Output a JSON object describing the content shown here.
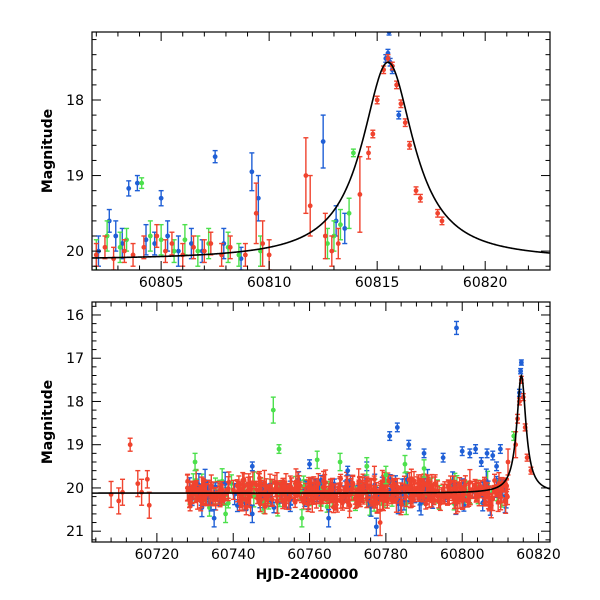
{
  "colors": {
    "blue": "#1f5fd6",
    "green": "#4ce04c",
    "red": "#f0432e",
    "model": "#000000"
  },
  "chart_data": [
    {
      "type": "scatter",
      "xlabel": "",
      "ylabel": "Magnitude",
      "xlim": [
        60801.8,
        60823.0
      ],
      "ylim": [
        20.25,
        17.1
      ],
      "y_inverted": true,
      "x_ticks": [
        60805,
        60810,
        60815,
        60820
      ],
      "y_ticks": [
        18,
        19,
        20
      ],
      "model_curve": {
        "t0": 60815.5,
        "m_base": 20.12,
        "m_peak": 17.5,
        "tE": 1.45
      },
      "series": [
        {
          "color": "blue",
          "points": [
            [
              60802.1,
              20.0,
              0.2
            ],
            [
              60802.6,
              19.6,
              0.15
            ],
            [
              60802.9,
              19.8,
              0.2
            ],
            [
              60803.2,
              19.9,
              0.2
            ],
            [
              60803.5,
              19.17,
              0.1
            ],
            [
              60803.9,
              19.1,
              0.1
            ],
            [
              60804.3,
              19.85,
              0.2
            ],
            [
              60804.7,
              19.9,
              0.15
            ],
            [
              60805.0,
              19.3,
              0.1
            ],
            [
              60805.3,
              19.8,
              0.2
            ],
            [
              60805.8,
              20.0,
              0.2
            ],
            [
              60806.4,
              19.9,
              0.2
            ],
            [
              60806.9,
              20.0,
              0.15
            ],
            [
              60807.5,
              18.75,
              0.08
            ],
            [
              60807.9,
              19.9,
              0.2
            ],
            [
              60808.7,
              20.1,
              0.15
            ],
            [
              60809.2,
              18.95,
              0.25
            ],
            [
              60809.5,
              19.3,
              0.3
            ],
            [
              60812.5,
              18.55,
              0.35
            ],
            [
              60813.1,
              19.6,
              0.2
            ],
            [
              60813.5,
              19.7,
              0.2
            ],
            [
              60815.4,
              17.45,
              0.05
            ],
            [
              60815.5,
              17.38,
              0.05
            ],
            [
              60815.55,
              17.1,
              0.04
            ],
            [
              60815.6,
              17.5,
              0.05
            ],
            [
              60815.7,
              17.6,
              0.05
            ],
            [
              60816.0,
              18.2,
              0.05
            ]
          ]
        },
        {
          "color": "green",
          "points": [
            [
              60802.0,
              20.05,
              0.2
            ],
            [
              60802.5,
              19.8,
              0.2
            ],
            [
              60803.1,
              19.95,
              0.2
            ],
            [
              60803.4,
              19.85,
              0.15
            ],
            [
              60804.1,
              19.1,
              0.07
            ],
            [
              60804.5,
              19.8,
              0.2
            ],
            [
              60805.0,
              19.85,
              0.2
            ],
            [
              60805.6,
              20.0,
              0.15
            ],
            [
              60806.1,
              19.85,
              0.2
            ],
            [
              60806.7,
              20.0,
              0.2
            ],
            [
              60807.2,
              19.9,
              0.2
            ],
            [
              60808.1,
              19.95,
              0.2
            ],
            [
              60808.6,
              20.05,
              0.15
            ],
            [
              60809.6,
              20.0,
              0.2
            ],
            [
              60812.7,
              19.9,
              0.2
            ],
            [
              60813.0,
              19.8,
              0.2
            ],
            [
              60813.3,
              19.65,
              0.2
            ],
            [
              60813.7,
              19.5,
              0.2
            ],
            [
              60813.9,
              18.7,
              0.05
            ]
          ]
        },
        {
          "color": "red",
          "points": [
            [
              60802.0,
              20.05,
              0.15
            ],
            [
              60802.4,
              19.95,
              0.15
            ],
            [
              60802.8,
              20.1,
              0.15
            ],
            [
              60803.3,
              20.0,
              0.15
            ],
            [
              60803.7,
              20.05,
              0.15
            ],
            [
              60804.2,
              19.95,
              0.15
            ],
            [
              60804.8,
              19.8,
              0.15
            ],
            [
              60805.2,
              20.0,
              0.15
            ],
            [
              60805.5,
              19.9,
              0.15
            ],
            [
              60806.0,
              20.05,
              0.15
            ],
            [
              60806.5,
              19.95,
              0.15
            ],
            [
              60807.0,
              20.0,
              0.15
            ],
            [
              60807.3,
              19.9,
              0.15
            ],
            [
              60807.8,
              20.05,
              0.15
            ],
            [
              60808.2,
              19.95,
              0.15
            ],
            [
              60808.9,
              20.05,
              0.15
            ],
            [
              60809.4,
              19.5,
              0.4
            ],
            [
              60809.7,
              19.9,
              0.3
            ],
            [
              60810.0,
              20.05,
              0.2
            ],
            [
              60811.7,
              19.0,
              0.5
            ],
            [
              60811.9,
              19.4,
              0.4
            ],
            [
              60812.6,
              19.8,
              0.3
            ],
            [
              60812.9,
              20.0,
              0.2
            ],
            [
              60813.2,
              19.9,
              0.2
            ],
            [
              60814.2,
              19.25,
              0.5
            ],
            [
              60814.6,
              18.7,
              0.08
            ],
            [
              60814.8,
              18.45,
              0.05
            ],
            [
              60815.0,
              18.0,
              0.05
            ],
            [
              60815.3,
              17.6,
              0.05
            ],
            [
              60815.5,
              17.45,
              0.05
            ],
            [
              60815.7,
              17.55,
              0.05
            ],
            [
              60815.9,
              17.8,
              0.05
            ],
            [
              60816.1,
              18.05,
              0.05
            ],
            [
              60816.3,
              18.3,
              0.05
            ],
            [
              60816.5,
              18.6,
              0.05
            ],
            [
              60816.8,
              19.2,
              0.05
            ],
            [
              60817.0,
              19.3,
              0.05
            ],
            [
              60817.8,
              19.5,
              0.05
            ],
            [
              60818.0,
              19.6,
              0.05
            ]
          ]
        }
      ]
    },
    {
      "type": "scatter",
      "xlabel": "HJD-2400000",
      "ylabel": "Magnitude",
      "xlim": [
        60703.0,
        60823.0
      ],
      "ylim": [
        21.25,
        15.7
      ],
      "y_inverted": true,
      "x_ticks": [
        60720,
        60740,
        60760,
        60780,
        60800,
        60820
      ],
      "y_ticks": [
        16,
        17,
        18,
        19,
        20,
        21
      ],
      "model_curve": {
        "t0": 60815.5,
        "m_base": 20.12,
        "m_peak": 17.4,
        "tE": 1.45
      },
      "dense_band": {
        "x_start": 60728,
        "x_end": 60812,
        "center": 20.12,
        "spread": 0.35,
        "counts": {
          "blue": 120,
          "green": 90,
          "red": 420
        },
        "seed": 7
      },
      "series": [
        {
          "color": "blue",
          "points": [
            [
              60798.5,
              16.3,
              0.15
            ],
            [
              60781.0,
              18.8,
              0.1
            ],
            [
              60783.0,
              18.6,
              0.1
            ],
            [
              60786.0,
              19.0,
              0.1
            ],
            [
              60790.0,
              19.2,
              0.1
            ],
            [
              60795.0,
              19.3,
              0.1
            ],
            [
              60800.0,
              19.15,
              0.1
            ],
            [
              60802.0,
              19.2,
              0.1
            ],
            [
              60803.5,
              19.1,
              0.1
            ],
            [
              60805.0,
              19.4,
              0.1
            ],
            [
              60806.5,
              19.2,
              0.1
            ],
            [
              60808.0,
              19.25,
              0.1
            ],
            [
              60809.0,
              19.5,
              0.1
            ],
            [
              60810.0,
              19.1,
              0.1
            ],
            [
              60745.0,
              19.5,
              0.1
            ],
            [
              60760.0,
              19.45,
              0.1
            ],
            [
              60770.0,
              19.6,
              0.1
            ],
            [
              60775.0,
              19.5,
              0.1
            ],
            [
              60765.0,
              20.7,
              0.2
            ],
            [
              60745.0,
              20.6,
              0.2
            ],
            [
              60735.0,
              20.7,
              0.2
            ],
            [
              60777.5,
              20.9,
              0.2
            ],
            [
              60815.0,
              17.8,
              0.08
            ],
            [
              60815.5,
              17.1,
              0.06
            ],
            [
              60815.3,
              17.3,
              0.06
            ]
          ]
        },
        {
          "color": "green",
          "points": [
            [
              60750.5,
              18.2,
              0.3
            ],
            [
              60752.0,
              19.1,
              0.1
            ],
            [
              60730.0,
              19.4,
              0.2
            ],
            [
              60762.0,
              19.35,
              0.2
            ],
            [
              60768.0,
              19.4,
              0.2
            ],
            [
              60775.0,
              19.5,
              0.2
            ],
            [
              60780.0,
              19.7,
              0.2
            ],
            [
              60785.0,
              19.45,
              0.2
            ],
            [
              60790.0,
              19.55,
              0.2
            ],
            [
              60738.0,
              20.6,
              0.2
            ],
            [
              60758.0,
              20.7,
              0.2
            ],
            [
              60813.5,
              18.8,
              0.1
            ]
          ]
        },
        {
          "color": "red",
          "points": [
            [
              60708.0,
              20.15,
              0.3
            ],
            [
              60710.0,
              20.3,
              0.3
            ],
            [
              60711.0,
              20.1,
              0.3
            ],
            [
              60713.0,
              19.0,
              0.15
            ],
            [
              60715.0,
              19.9,
              0.3
            ],
            [
              60716.0,
              20.1,
              0.3
            ],
            [
              60717.5,
              19.8,
              0.2
            ],
            [
              60718.0,
              20.4,
              0.3
            ],
            [
              60728.0,
              20.0,
              0.3
            ],
            [
              60778.5,
              20.8,
              0.3
            ],
            [
              60777.0,
              19.8,
              0.3
            ],
            [
              60814.0,
              19.0,
              0.3
            ],
            [
              60814.5,
              18.4,
              0.1
            ],
            [
              60815.0,
              18.0,
              0.08
            ],
            [
              60815.5,
              17.5,
              0.08
            ],
            [
              60816.0,
              17.9,
              0.08
            ],
            [
              60816.5,
              18.6,
              0.08
            ],
            [
              60817.0,
              19.3,
              0.08
            ],
            [
              60818.0,
              19.6,
              0.08
            ],
            [
              60812.0,
              19.4,
              0.3
            ]
          ]
        }
      ]
    }
  ]
}
